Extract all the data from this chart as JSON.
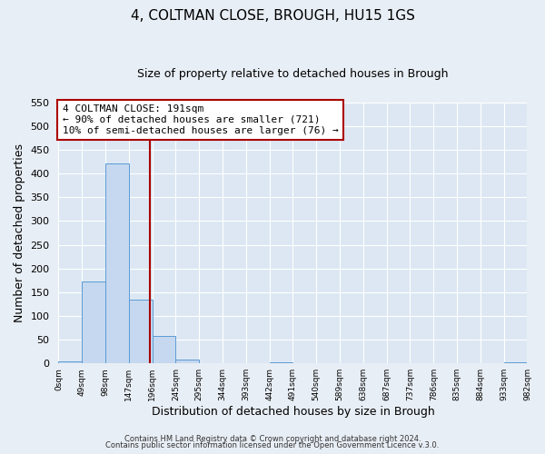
{
  "title": "4, COLTMAN CLOSE, BROUGH, HU15 1GS",
  "subtitle": "Size of property relative to detached houses in Brough",
  "xlabel": "Distribution of detached houses by size in Brough",
  "ylabel": "Number of detached properties",
  "bar_edges": [
    0,
    49,
    98,
    147,
    196,
    245,
    294,
    343,
    392,
    441,
    490,
    539,
    588,
    637,
    686,
    735,
    784,
    833,
    882,
    931,
    980
  ],
  "bar_heights": [
    5,
    173,
    421,
    134,
    57,
    8,
    0,
    0,
    0,
    2,
    0,
    0,
    0,
    0,
    0,
    0,
    0,
    0,
    0,
    3
  ],
  "tick_labels": [
    "0sqm",
    "49sqm",
    "98sqm",
    "147sqm",
    "196sqm",
    "245sqm",
    "295sqm",
    "344sqm",
    "393sqm",
    "442sqm",
    "491sqm",
    "540sqm",
    "589sqm",
    "638sqm",
    "687sqm",
    "737sqm",
    "786sqm",
    "835sqm",
    "884sqm",
    "933sqm",
    "982sqm"
  ],
  "bar_color": "#c5d8ef",
  "bar_edge_color": "#5b9bd5",
  "vline_x": 191,
  "vline_color": "#aa0000",
  "annotation_box_color": "#aa0000",
  "annotation_line1": "4 COLTMAN CLOSE: 191sqm",
  "annotation_line2": "← 90% of detached houses are smaller (721)",
  "annotation_line3": "10% of semi-detached houses are larger (76) →",
  "ylim": [
    0,
    550
  ],
  "yticks": [
    0,
    50,
    100,
    150,
    200,
    250,
    300,
    350,
    400,
    450,
    500,
    550
  ],
  "footer1": "Contains HM Land Registry data © Crown copyright and database right 2024.",
  "footer2": "Contains public sector information licensed under the Open Government Licence v.3.0.",
  "bg_color": "#e8eef5",
  "plot_bg_color": "#dce7f3",
  "grid_color": "#ffffff",
  "figsize": [
    6.0,
    5.0
  ],
  "dpi": 100
}
